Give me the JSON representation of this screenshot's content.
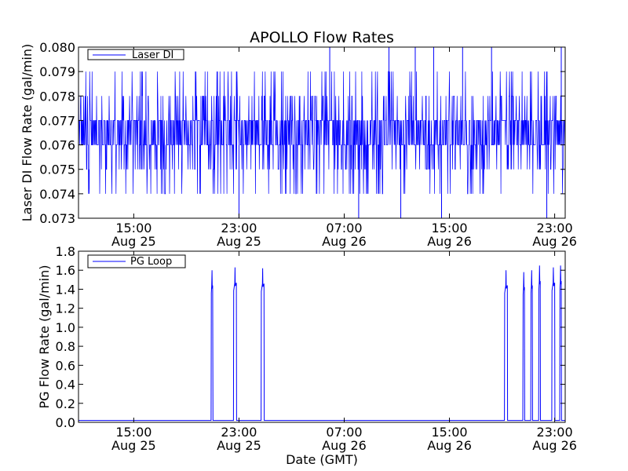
{
  "chart_data": [
    {
      "type": "line",
      "title": "APOLLO Flow Rates",
      "xlabel": "",
      "ylabel": "Laser DI Flow Rate (gal/min)",
      "ylim": [
        0.073,
        0.08
      ],
      "yticks": [
        "0.073",
        "0.074",
        "0.075",
        "0.076",
        "0.077",
        "0.078",
        "0.079",
        "0.080"
      ],
      "xlim_hours_note": "x axis spans Aug 25 ~11:00 to Aug 26 ~23:40 GMT",
      "xticks": [
        {
          "time": "15:00",
          "date": "Aug 25",
          "hour": 15
        },
        {
          "time": "23:00",
          "date": "Aug 25",
          "hour": 23
        },
        {
          "time": "07:00",
          "date": "Aug 26",
          "hour": 31
        },
        {
          "time": "15:00",
          "date": "Aug 26",
          "hour": 39
        },
        {
          "time": "23:00",
          "date": "Aug 26",
          "hour": 47
        }
      ],
      "xrange_hours": [
        10.8,
        47.8
      ],
      "series": [
        {
          "name": "Laser DI",
          "color": "#0000ff",
          "baseline_low": 0.076,
          "baseline_high": 0.077,
          "spike_levels": [
            0.074,
            0.075,
            0.078,
            0.079,
            0.08
          ],
          "extreme_low_times": [
            23.0,
            32.1,
            35.3,
            38.4,
            46.4
          ],
          "extreme_high_times": [
            29.9,
            34.4,
            36.4,
            37.8,
            40.0,
            42.2,
            47.5
          ]
        }
      ],
      "legend": "top-left",
      "grid": false
    },
    {
      "type": "line",
      "title": "",
      "xlabel": "Date (GMT)",
      "ylabel": "PG Flow Rate (gal/min)",
      "ylim": [
        0.0,
        1.8
      ],
      "yticks": [
        "0.0",
        "0.2",
        "0.4",
        "0.6",
        "0.8",
        "1.0",
        "1.2",
        "1.4",
        "1.6",
        "1.8"
      ],
      "xticks": [
        {
          "time": "15:00",
          "date": "Aug 25",
          "hour": 15
        },
        {
          "time": "23:00",
          "date": "Aug 25",
          "hour": 23
        },
        {
          "time": "07:00",
          "date": "Aug 26",
          "hour": 31
        },
        {
          "time": "15:00",
          "date": "Aug 26",
          "hour": 39
        },
        {
          "time": "23:00",
          "date": "Aug 26",
          "hour": 47
        }
      ],
      "xrange_hours": [
        10.8,
        47.8
      ],
      "series": [
        {
          "name": "PG Loop",
          "color": "#0000ff",
          "baseline": 0.02,
          "pulses": [
            {
              "start": 20.9,
              "end": 21.0,
              "peak": 1.6
            },
            {
              "start": 22.6,
              "end": 22.8,
              "peak": 1.63
            },
            {
              "start": 24.7,
              "end": 24.9,
              "peak": 1.62
            },
            {
              "start": 43.2,
              "end": 43.4,
              "peak": 1.6
            },
            {
              "start": 44.6,
              "end": 44.7,
              "peak": 1.58
            },
            {
              "start": 45.2,
              "end": 45.3,
              "peak": 1.6
            },
            {
              "start": 45.8,
              "end": 45.9,
              "peak": 1.65
            },
            {
              "start": 46.8,
              "end": 47.0,
              "peak": 1.63
            },
            {
              "start": 47.4,
              "end": 47.5,
              "peak": 1.65
            }
          ]
        }
      ],
      "legend": "top-left",
      "grid": false
    }
  ]
}
